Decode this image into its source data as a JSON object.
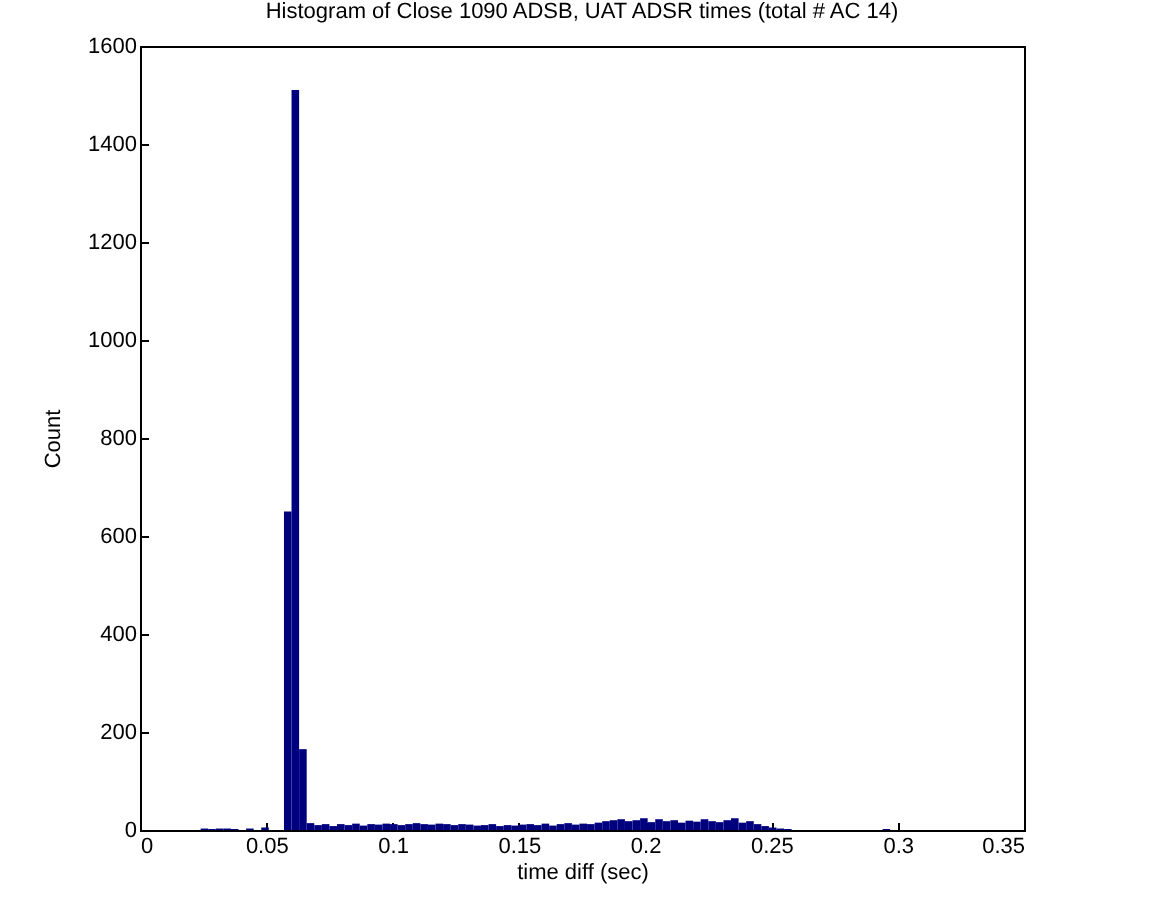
{
  "chart_data": {
    "type": "histogram",
    "title": "Histogram of Close 1090 ADSB, UAT ADSR times (total # AC 14)",
    "xlabel": "time diff (sec)",
    "ylabel": "Count",
    "color": "#00007f",
    "bins": [
      0.024,
      0.027,
      0.03,
      0.033,
      0.036,
      0.039,
      0.042,
      0.045,
      0.048,
      0.051,
      0.054,
      0.057,
      0.06,
      0.063,
      0.066,
      0.069,
      0.072,
      0.075,
      0.078,
      0.081,
      0.084,
      0.087,
      0.09,
      0.093,
      0.096,
      0.099,
      0.102,
      0.105,
      0.108,
      0.111,
      0.114,
      0.117,
      0.12,
      0.123,
      0.126,
      0.129,
      0.132,
      0.135,
      0.138,
      0.141,
      0.144,
      0.147,
      0.15,
      0.153,
      0.156,
      0.159,
      0.162,
      0.165,
      0.168,
      0.171,
      0.174,
      0.177,
      0.18,
      0.183,
      0.186,
      0.189,
      0.192,
      0.195,
      0.198,
      0.201,
      0.204,
      0.207,
      0.21,
      0.213,
      0.216,
      0.219,
      0.222,
      0.225,
      0.228,
      0.231,
      0.234,
      0.237,
      0.24,
      0.243,
      0.246,
      0.249,
      0.252,
      0.255,
      0.258,
      0.261,
      0.264,
      0.267,
      0.27,
      0.273,
      0.276,
      0.279,
      0.282,
      0.285,
      0.288,
      0.291,
      0.294,
      0.297,
      0.3
    ],
    "values": [
      3,
      2,
      3,
      3,
      2,
      0,
      3,
      0,
      5,
      0,
      0,
      650,
      1510,
      165,
      14,
      10,
      12,
      8,
      12,
      10,
      13,
      9,
      12,
      11,
      13,
      12,
      10,
      12,
      14,
      12,
      11,
      13,
      12,
      10,
      12,
      11,
      9,
      10,
      12,
      8,
      10,
      9,
      11,
      12,
      10,
      13,
      9,
      12,
      14,
      11,
      13,
      12,
      15,
      18,
      20,
      22,
      18,
      20,
      24,
      16,
      22,
      18,
      20,
      15,
      19,
      17,
      22,
      18,
      16,
      20,
      24,
      15,
      18,
      12,
      8,
      5,
      3,
      2,
      0,
      0,
      0,
      0,
      0,
      0,
      0,
      0,
      0,
      0,
      0,
      0,
      2,
      0
    ],
    "xlim": [
      0,
      0.35
    ],
    "xticks": [
      0,
      0.05,
      0.1,
      0.15,
      0.2,
      0.25,
      0.3,
      0.35
    ],
    "ylim": [
      0,
      1600
    ],
    "yticks": [
      0,
      200,
      400,
      600,
      800,
      1000,
      1200,
      1400,
      1600
    ],
    "grid": false
  }
}
